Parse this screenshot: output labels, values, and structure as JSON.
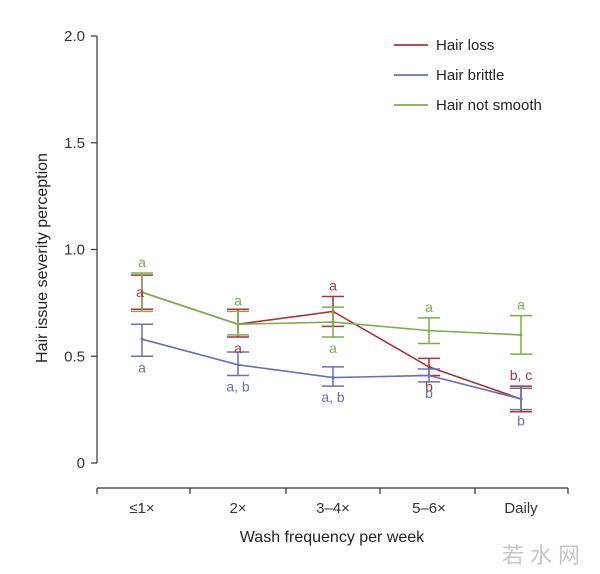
{
  "chart_data": {
    "type": "line",
    "xlabel": "Wash frequency per week",
    "ylabel": "Hair issue severity perception",
    "ylim": [
      0,
      2.0
    ],
    "yticks": [
      "0",
      "0.5",
      "1.0",
      "1.5",
      "2.0"
    ],
    "categories": [
      "≤1×",
      "2×",
      "3–4×",
      "5–6×",
      "Daily"
    ],
    "legend_position": "top-right",
    "grid": false,
    "series": [
      {
        "name": "Hair loss",
        "color": "#a8343c",
        "values": [
          0.8,
          0.65,
          0.71,
          0.45,
          0.3
        ],
        "err_low": [
          0.72,
          0.59,
          0.64,
          0.41,
          0.24
        ],
        "err_high": [
          0.88,
          0.72,
          0.78,
          0.49,
          0.36
        ],
        "sig": [
          "a",
          "a",
          "a",
          "b",
          "b, c"
        ]
      },
      {
        "name": "Hair brittle",
        "color": "#6a70b0",
        "values": [
          0.58,
          0.46,
          0.4,
          0.41,
          0.3
        ],
        "err_low": [
          0.5,
          0.41,
          0.36,
          0.38,
          0.25
        ],
        "err_high": [
          0.65,
          0.52,
          0.45,
          0.44,
          0.35
        ],
        "sig": [
          "a",
          "a, b",
          "a, b",
          "b",
          "b"
        ]
      },
      {
        "name": "Hair not smooth",
        "color": "#7cad4e",
        "values": [
          0.8,
          0.65,
          0.66,
          0.62,
          0.6
        ],
        "err_low": [
          0.71,
          0.6,
          0.59,
          0.56,
          0.51
        ],
        "err_high": [
          0.89,
          0.71,
          0.73,
          0.68,
          0.69
        ],
        "sig": [
          "a",
          "a",
          "a",
          "a",
          "a"
        ]
      }
    ]
  },
  "watermark": "若水网"
}
